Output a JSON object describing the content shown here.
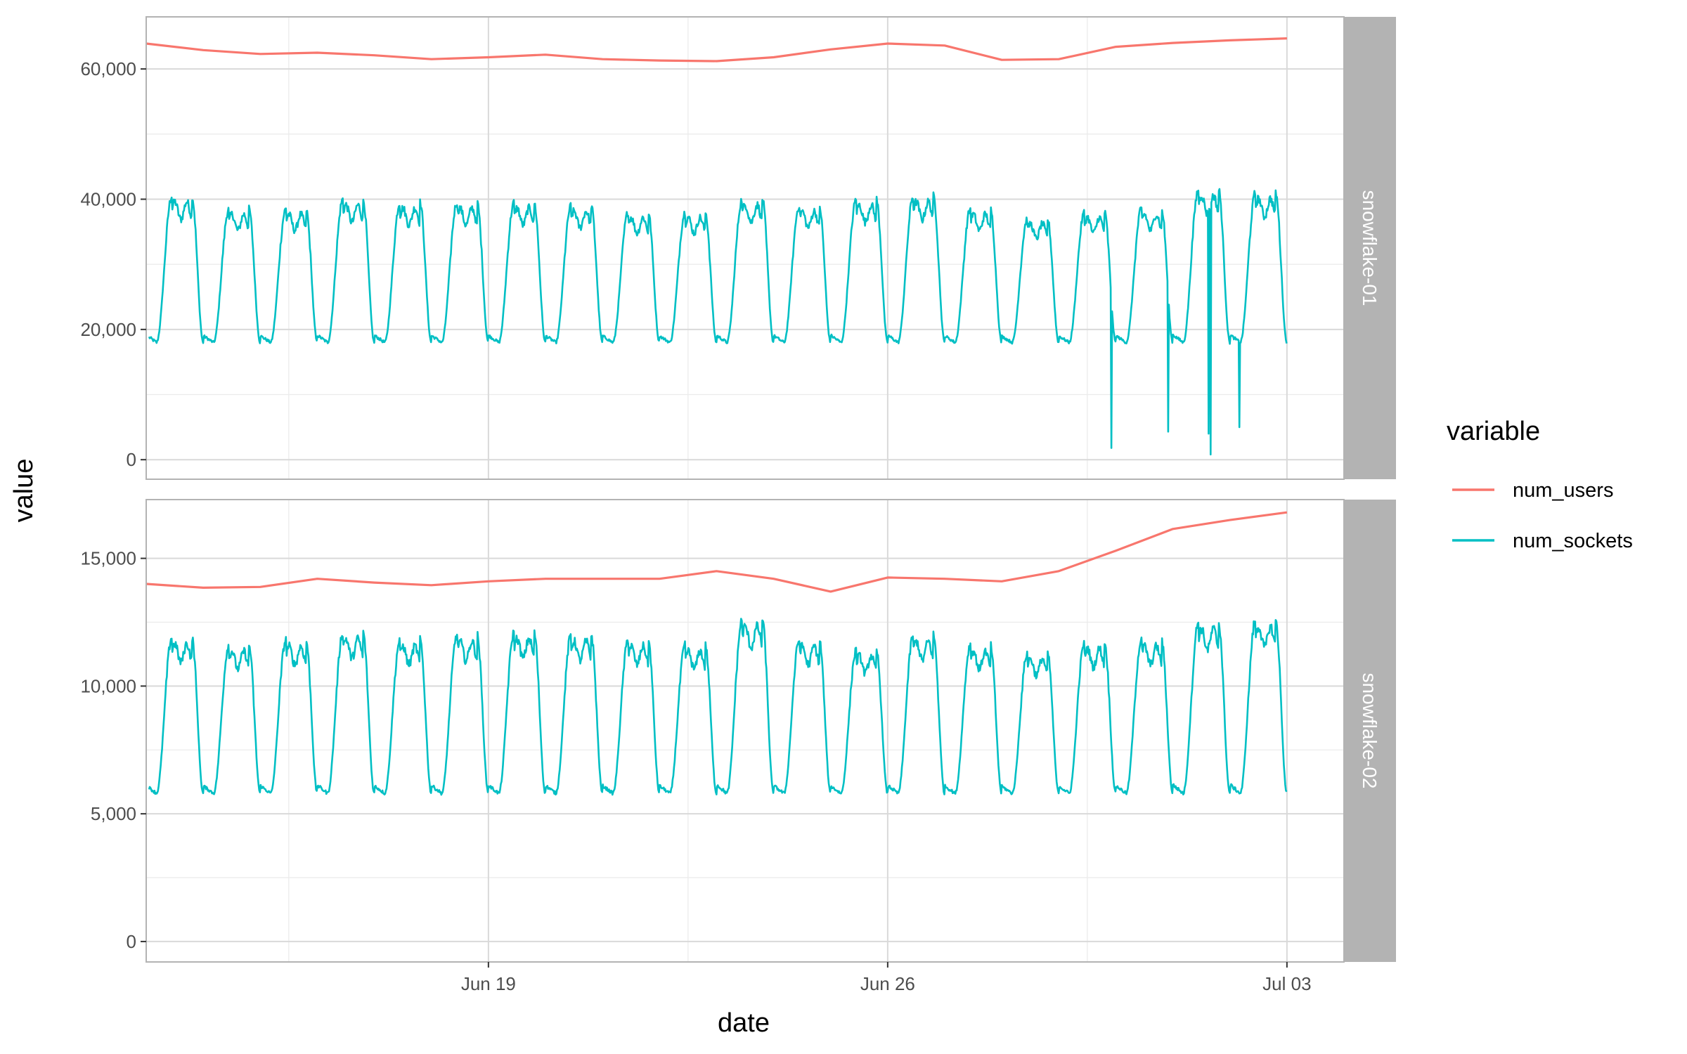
{
  "chart_data": {
    "type": "line",
    "facet_layout": "rows",
    "xlabel": "date",
    "ylabel": "value",
    "x_range": [
      "2022-06-13",
      "2022-07-04"
    ],
    "x_ticks": [
      {
        "date": "2022-06-19",
        "label": "Jun 19"
      },
      {
        "date": "2022-06-26",
        "label": "Jun 26"
      },
      {
        "date": "2022-07-03",
        "label": "Jul 03"
      }
    ],
    "grid": true,
    "legend": {
      "title": "variable",
      "position": "right",
      "entries": [
        {
          "name": "num_users",
          "color": "#F8766D"
        },
        {
          "name": "num_sockets",
          "color": "#00BFC4"
        }
      ]
    },
    "panels": [
      {
        "strip": "snowflake-01",
        "ylim": [
          -3000,
          68000
        ],
        "y_ticks": [
          {
            "value": 0,
            "label": "0"
          },
          {
            "value": 20000,
            "label": "20,000"
          },
          {
            "value": 40000,
            "label": "40,000"
          },
          {
            "value": 60000,
            "label": "60,000"
          }
        ],
        "series": [
          {
            "name": "num_users",
            "color": "#F8766D",
            "x": [
              "2022-06-13",
              "2022-06-14",
              "2022-06-15",
              "2022-06-16",
              "2022-06-17",
              "2022-06-18",
              "2022-06-19",
              "2022-06-20",
              "2022-06-21",
              "2022-06-22",
              "2022-06-23",
              "2022-06-24",
              "2022-06-25",
              "2022-06-26",
              "2022-06-27",
              "2022-06-28",
              "2022-06-29",
              "2022-06-30",
              "2022-07-01",
              "2022-07-02",
              "2022-07-03"
            ],
            "values": [
              63900,
              62900,
              62300,
              62500,
              62100,
              61500,
              61800,
              62200,
              61500,
              61300,
              61200,
              61800,
              63000,
              63900,
              63600,
              61400,
              61500,
              63400,
              64000,
              64400,
              64700
            ]
          },
          {
            "name": "num_sockets",
            "color": "#00BFC4",
            "daily_min": 18000,
            "daily_max": [
              40500,
              38500,
              38500,
              40000,
              39500,
              39500,
              39500,
              39000,
              38000,
              38000,
              40000,
              39000,
              40000,
              40500,
              38500,
              37000,
              38000,
              38500,
              41500,
              41000
            ],
            "dips": [
              {
                "x": "2022-06-29T22:00",
                "value": 1800
              },
              {
                "x": "2022-06-30T22:00",
                "value": 4300
              },
              {
                "x": "2022-07-01T15:00",
                "value": 4000
              },
              {
                "x": "2022-07-01T16:00",
                "value": 800
              },
              {
                "x": "2022-07-02T04:00",
                "value": 5000
              }
            ]
          }
        ]
      },
      {
        "strip": "snowflake-02",
        "ylim": [
          -800,
          17300
        ],
        "y_ticks": [
          {
            "value": 0,
            "label": "0"
          },
          {
            "value": 5000,
            "label": "5,000"
          },
          {
            "value": 10000,
            "label": "10,000"
          },
          {
            "value": 15000,
            "label": "15,000"
          }
        ],
        "series": [
          {
            "name": "num_users",
            "color": "#F8766D",
            "x": [
              "2022-06-13",
              "2022-06-14",
              "2022-06-15",
              "2022-06-16",
              "2022-06-17",
              "2022-06-18",
              "2022-06-19",
              "2022-06-20",
              "2022-06-21",
              "2022-06-22",
              "2022-06-23",
              "2022-06-24",
              "2022-06-25",
              "2022-06-26",
              "2022-06-27",
              "2022-06-28",
              "2022-06-29",
              "2022-06-30",
              "2022-07-01",
              "2022-07-02",
              "2022-07-03"
            ],
            "values": [
              14000,
              13850,
              13880,
              14200,
              14050,
              13950,
              14100,
              14200,
              14200,
              14200,
              14500,
              14200,
              13700,
              14250,
              14200,
              14100,
              14500,
              15300,
              16150,
              16500,
              16800
            ]
          },
          {
            "name": "num_sockets",
            "color": "#00BFC4",
            "daily_min": 5800,
            "daily_max": [
              11900,
              11600,
              11800,
              12100,
              11800,
              12000,
              12100,
              12000,
              11800,
              11600,
              12600,
              11800,
              11400,
              12000,
              11600,
              11300,
              11700,
              11800,
              12500,
              12600
            ],
            "dips": []
          }
        ]
      }
    ]
  }
}
